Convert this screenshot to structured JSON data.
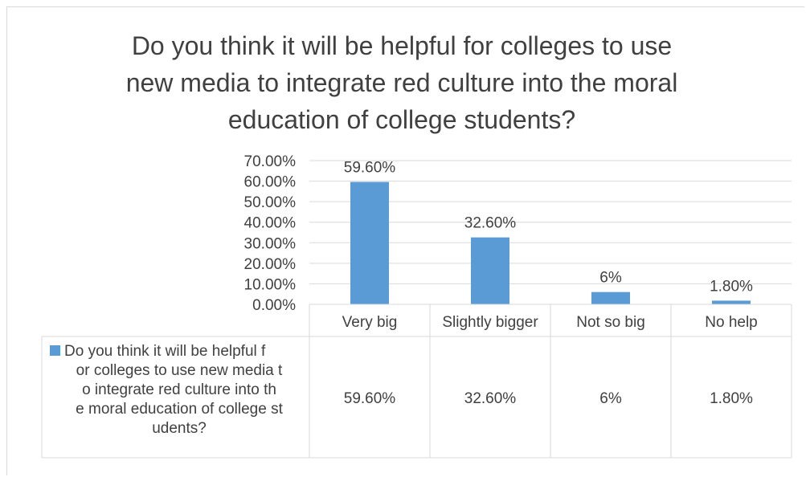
{
  "chart_data": {
    "type": "bar",
    "title": "Do you think it will be helpful for colleges to use new media to integrate red culture into the moral education of college students?",
    "title_lines": [
      "Do you think it will be helpful for colleges to use",
      "new media to integrate red culture into the moral",
      "education of college students?"
    ],
    "categories": [
      "Very big",
      "Slightly bigger",
      "Not so big",
      "No help"
    ],
    "series": [
      {
        "name": "Do you think it will be helpful for colleges to use new media to integrate red culture into the moral education of college students?",
        "values": [
          59.6,
          32.6,
          6,
          1.8
        ],
        "labels": [
          "59.60%",
          "32.60%",
          "6%",
          "1.80%"
        ],
        "color": "#5b9bd5"
      }
    ],
    "legend_table_label_lines": [
      "Do you think it will be helpful f",
      "or colleges to use new media t",
      "o integrate red culture into th",
      "e moral education of college st",
      "udents?"
    ],
    "yticks": [
      "0.00%",
      "10.00%",
      "20.00%",
      "30.00%",
      "40.00%",
      "50.00%",
      "60.00%",
      "70.00%"
    ],
    "ylim": [
      0,
      70
    ],
    "grid": true,
    "legend": "data table"
  }
}
